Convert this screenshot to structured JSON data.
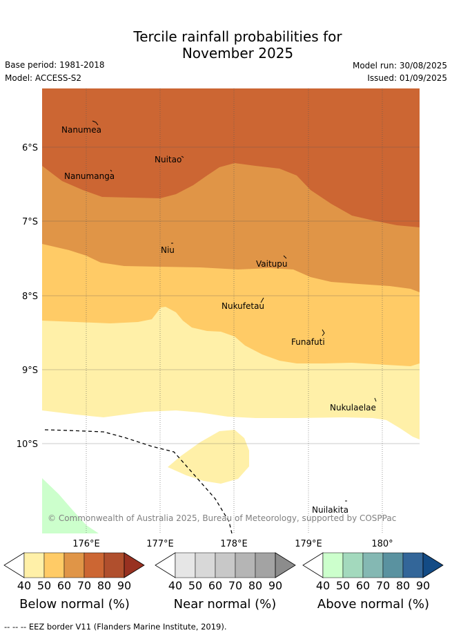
{
  "header": {
    "title_line1": "Tercile rainfall probabilities for",
    "title_line2": "November 2025",
    "base_period": "Base period: 1981-2018",
    "model": "Model: ACCESS-S2",
    "model_run": "Model run: 30/08/2025",
    "issued": "Issued: 01/09/2025"
  },
  "map": {
    "lat_labels": [
      "6°S",
      "7°S",
      "8°S",
      "9°S",
      "10°S"
    ],
    "lon_labels": [
      "176°E",
      "177°E",
      "178°E",
      "179°E",
      "180°"
    ],
    "places": [
      "Nanumea",
      "Nuitao",
      "Nanumanga",
      "Niu",
      "Vaitupu",
      "Nukufetau",
      "Funafuti",
      "Nukulaelae",
      "Nuilakita"
    ],
    "copyright": "© Commonwealth of Australia 2025, Bureau of Meteorology, supported by COSPPac",
    "legend_line": "EEZ border"
  },
  "colorbars": {
    "ticks": [
      "40",
      "50",
      "60",
      "70",
      "80",
      "90"
    ],
    "below": {
      "label": "Below normal (%)",
      "colors": [
        "#fff0a8",
        "#ffcb66",
        "#e09547",
        "#cc6633",
        "#b04f2d",
        "#983121"
      ]
    },
    "near": {
      "label": "Near normal (%)",
      "colors": [
        "#e6e6e6",
        "#d8d8d8",
        "#c8c8c8",
        "#b5b5b5",
        "#a3a3a3",
        "#8c8c8c"
      ]
    },
    "above": {
      "label": "Above normal (%)",
      "colors": [
        "#ccffcc",
        "#a3d9bd",
        "#84b8b3",
        "#5a92a0",
        "#336699",
        "#134b85"
      ]
    }
  },
  "footer": {
    "text": "--  --  -- EEZ border V11 (Flanders Marine Institute, 2019)."
  }
}
